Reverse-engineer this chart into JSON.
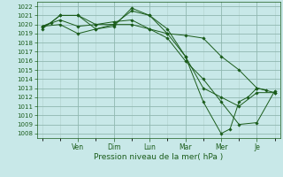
{
  "xlabel": "Pression niveau de la mer( hPa )",
  "bg_color": "#c8e8e8",
  "grid_major_color": "#90b8b0",
  "grid_minor_color": "#b0d0cc",
  "line_color": "#1a5c1a",
  "ylim": [
    1007.5,
    1022.5
  ],
  "yticks": [
    1008,
    1009,
    1010,
    1011,
    1012,
    1013,
    1014,
    1015,
    1016,
    1017,
    1018,
    1019,
    1020,
    1021,
    1022
  ],
  "xlim": [
    -0.3,
    13.3
  ],
  "x_major_ticks": [
    2.0,
    4.0,
    6.0,
    8.0,
    10.0,
    12.0
  ],
  "x_tick_labels": [
    "Ven",
    "Dim",
    "Lun",
    "Mar",
    "Mer",
    "Je"
  ],
  "lines": [
    {
      "x": [
        0.0,
        0.5,
        1.0,
        2.0,
        3.0,
        4.0,
        5.0,
        6.0,
        7.0,
        8.0,
        9.0,
        10.0,
        11.0,
        12.0,
        13.0
      ],
      "y": [
        1019.8,
        1020.2,
        1021.0,
        1021.0,
        1020.0,
        1020.0,
        1020.0,
        1019.5,
        1019.0,
        1018.8,
        1018.5,
        1016.5,
        1015.0,
        1013.0,
        1012.5
      ]
    },
    {
      "x": [
        0.0,
        1.0,
        2.0,
        3.0,
        4.0,
        5.0,
        6.0,
        7.0,
        8.0,
        9.0,
        10.0,
        10.5,
        11.0,
        11.5,
        12.0,
        12.5
      ],
      "y": [
        1019.5,
        1021.0,
        1021.0,
        1019.5,
        1019.8,
        1021.8,
        1021.0,
        1019.5,
        1016.5,
        1011.5,
        1008.0,
        1008.5,
        1011.5,
        1012.0,
        1013.0,
        1012.8
      ]
    },
    {
      "x": [
        0.0,
        1.0,
        2.0,
        3.0,
        4.0,
        5.0,
        6.0,
        7.0,
        8.0,
        9.0,
        10.0,
        11.0,
        12.0,
        13.0
      ],
      "y": [
        1019.8,
        1020.5,
        1019.8,
        1020.0,
        1020.3,
        1020.5,
        1019.5,
        1018.5,
        1016.0,
        1014.0,
        1011.5,
        1009.0,
        1009.2,
        1012.7
      ]
    },
    {
      "x": [
        0.0,
        1.0,
        2.0,
        3.0,
        4.0,
        5.0,
        6.0,
        7.0,
        8.0,
        9.0,
        10.0,
        11.0,
        12.0,
        13.0
      ],
      "y": [
        1019.8,
        1020.0,
        1019.0,
        1019.5,
        1020.0,
        1021.5,
        1021.0,
        1019.0,
        1016.5,
        1013.0,
        1012.0,
        1011.0,
        1012.5,
        1012.5
      ]
    }
  ]
}
